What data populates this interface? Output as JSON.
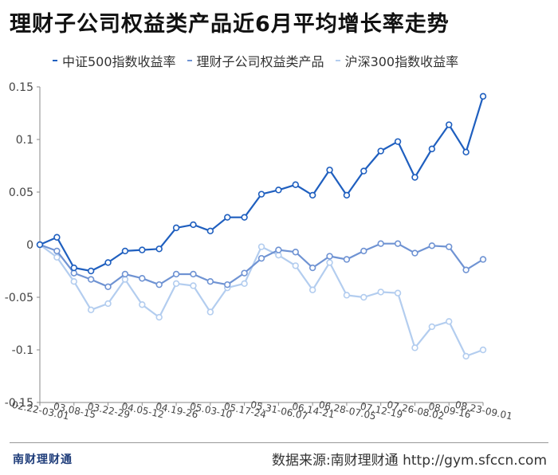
{
  "title": "理财子公司权益类产品近6月平均增长率走势",
  "footer": {
    "brand": "南财理财通",
    "source": "数据来源:南财理财通 http://gym.sfccn.com"
  },
  "chart_data": {
    "type": "line",
    "title": "理财子公司权益类产品近6月平均增长率走势",
    "xlabel": "",
    "ylabel": "",
    "ylim": [
      -0.15,
      0.15
    ],
    "yticks": [
      0.15,
      0.1,
      0.05,
      0,
      -0.05,
      -0.1,
      -0.15
    ],
    "ytick_labels": [
      "0.15",
      "0.1",
      "0.05",
      "0",
      "-0.05",
      "-0.1",
      "-0.15"
    ],
    "grid": false,
    "legend_position": "top",
    "x_tick_labels": [
      "02.22-03.01",
      "03.08-15",
      "03.22-29",
      "04.05-12",
      "04.19-26",
      "05.03-10",
      "05.17-24",
      "05.31-06.07",
      "06.14-21",
      "06.28-07.05",
      "07.12-19",
      "07.26-08.02",
      "08.09-16",
      "08.23-09.01"
    ],
    "series": [
      {
        "name": "中证500指数收益率",
        "color": "#1f5fbf",
        "values": [
          0,
          0.007,
          -0.022,
          -0.025,
          -0.017,
          -0.006,
          -0.005,
          -0.004,
          0.016,
          0.019,
          0.013,
          0.026,
          0.026,
          0.048,
          0.052,
          0.057,
          0.047,
          0.071,
          0.047,
          0.07,
          0.089,
          0.098,
          0.064,
          0.091,
          0.114,
          0.088,
          0.141
        ]
      },
      {
        "name": "理财子公司权益类产品",
        "color": "#6f93d3",
        "values": [
          0,
          -0.006,
          -0.027,
          -0.033,
          -0.04,
          -0.028,
          -0.032,
          -0.038,
          -0.028,
          -0.028,
          -0.035,
          -0.038,
          -0.027,
          -0.013,
          -0.005,
          -0.007,
          -0.022,
          -0.011,
          -0.014,
          -0.006,
          0.001,
          0.001,
          -0.008,
          -0.001,
          -0.002,
          -0.024,
          -0.014
        ]
      },
      {
        "name": "沪深300指数收益率",
        "color": "#b3cdef",
        "values": [
          0,
          -0.012,
          -0.035,
          -0.062,
          -0.056,
          -0.033,
          -0.057,
          -0.069,
          -0.037,
          -0.039,
          -0.064,
          -0.041,
          -0.037,
          -0.002,
          -0.01,
          -0.02,
          -0.043,
          -0.017,
          -0.048,
          -0.05,
          -0.045,
          -0.046,
          -0.098,
          -0.078,
          -0.073,
          -0.106,
          -0.1
        ]
      }
    ]
  }
}
